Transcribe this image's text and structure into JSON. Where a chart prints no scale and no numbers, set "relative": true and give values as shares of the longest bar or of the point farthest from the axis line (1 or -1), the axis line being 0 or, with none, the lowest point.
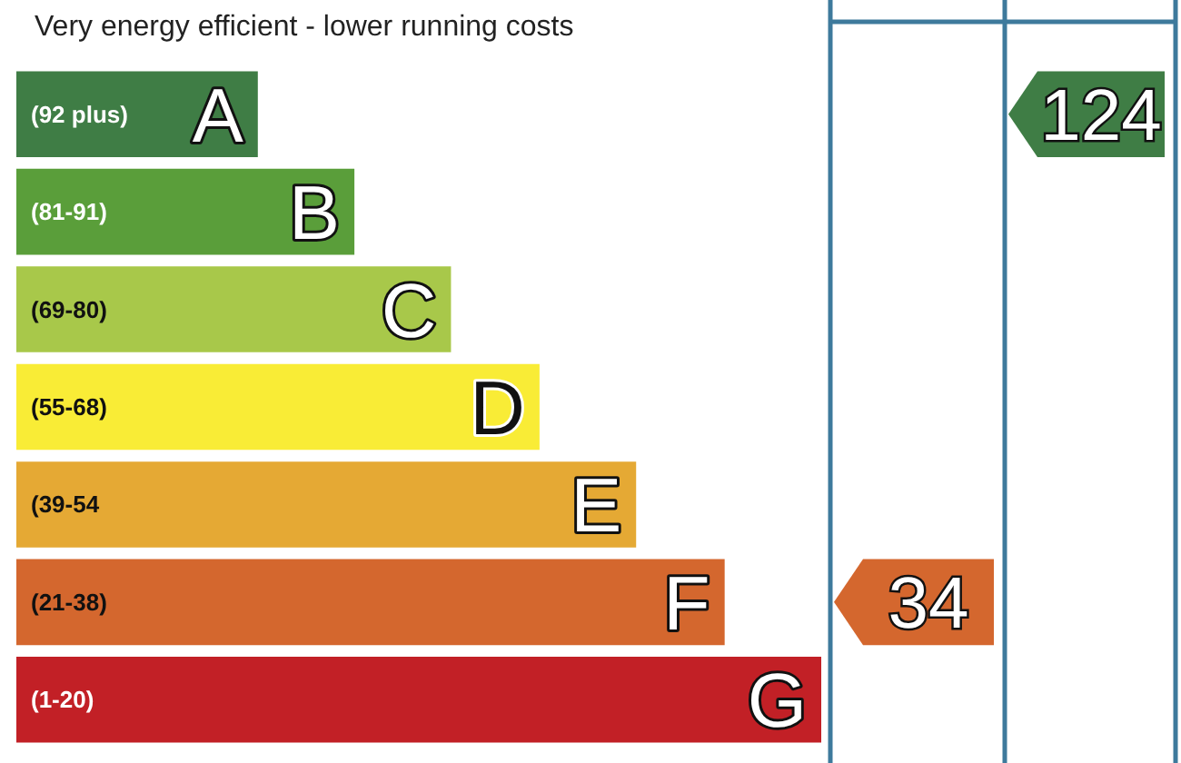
{
  "chart_data": {
    "type": "bar",
    "orientation": "horizontal",
    "title": "Very energy efficient - lower running costs",
    "categories": [
      "(92 plus)",
      "(81-91)",
      "(69-80)",
      "(55-68)",
      "(39-54",
      "(21-38)",
      "(1-20)"
    ],
    "values": [
      0.3,
      0.42,
      0.54,
      0.65,
      0.77,
      0.88,
      1
    ],
    "colors": [
      "#3f7d45",
      "#5a9e3a",
      "#a8c84a",
      "#f9ec36",
      "#e5a934",
      "#d4672e",
      "#c22026"
    ],
    "relative": true,
    "annotations": [
      {
        "text": "A",
        "x": 0.3,
        "y": "(92 plus)"
      },
      {
        "text": "B",
        "x": 0.42,
        "y": "(81-91)"
      },
      {
        "text": "C",
        "x": 0.54,
        "y": "(69-80)"
      },
      {
        "text": "D",
        "x": 0.65,
        "y": "(55-68)"
      },
      {
        "text": "E",
        "x": 0.77,
        "y": "(39-54"
      },
      {
        "text": "F",
        "x": 0.88,
        "y": "(21-38)"
      },
      {
        "text": "G",
        "x": 1,
        "y": "(1-20)"
      },
      "34",
      "124"
    ]
  }
}
